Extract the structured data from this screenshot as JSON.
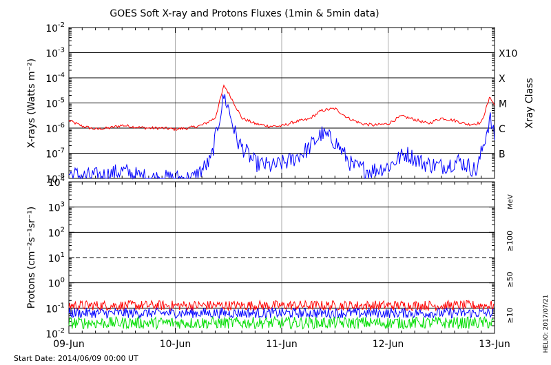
{
  "title": "GOES Soft X-ray and Protons Fluxes   (1min & 5min data)",
  "footer": {
    "start_date": "Start Date: 2014/06/09 00:00 UT",
    "credit": "HELIO: 2017/07/21"
  },
  "colors": {
    "xray_long": "#ff0000",
    "xray_short": "#0000ff",
    "proton_10": "#ff0000",
    "proton_50": "#0000ff",
    "proton_100": "#00dd00",
    "day_grid": "#aaaaaa"
  },
  "chart_data": [
    {
      "type": "line",
      "ylabel": "X-rays (Watts m⁻²)",
      "right_label": "Xray Class",
      "y_scale": "log",
      "ylim": [
        1e-08,
        0.01
      ],
      "y_ticks": [
        {
          "value": 1e-08,
          "base": "10",
          "exp": "-8"
        },
        {
          "value": 1e-07,
          "base": "10",
          "exp": "-7"
        },
        {
          "value": 1e-06,
          "base": "10",
          "exp": "-6"
        },
        {
          "value": 1e-05,
          "base": "10",
          "exp": "-5"
        },
        {
          "value": 0.0001,
          "base": "10",
          "exp": "-4"
        },
        {
          "value": 0.001,
          "base": "10",
          "exp": "-3"
        },
        {
          "value": 0.01,
          "base": "10",
          "exp": "-2"
        }
      ],
      "grid_lines": [
        1e-07,
        1e-06,
        1e-05,
        0.0001,
        0.001
      ],
      "class_labels": [
        {
          "label": "B",
          "value": 1e-07
        },
        {
          "label": "C",
          "value": 1e-06
        },
        {
          "label": "M",
          "value": 1e-05
        },
        {
          "label": "X",
          "value": 0.0001
        },
        {
          "label": "X10",
          "value": 0.001
        }
      ],
      "xlim": [
        "2014-06-09",
        "2014-06-13"
      ],
      "series": [
        {
          "color_key": "xray_long",
          "x": [
            "2014-06-09 00:00",
            "2014-06-09 03:00",
            "2014-06-09 06:00",
            "2014-06-09 09:00",
            "2014-06-09 12:00",
            "2014-06-09 15:00",
            "2014-06-09 18:00",
            "2014-06-09 21:00",
            "2014-06-10 00:00",
            "2014-06-10 03:00",
            "2014-06-10 06:00",
            "2014-06-10 09:00",
            "2014-06-10 11:00",
            "2014-06-10 12:00",
            "2014-06-10 13:00",
            "2014-06-10 15:00",
            "2014-06-10 18:00",
            "2014-06-10 21:00",
            "2014-06-11 00:00",
            "2014-06-11 03:00",
            "2014-06-11 06:00",
            "2014-06-11 09:00",
            "2014-06-11 12:00",
            "2014-06-11 15:00",
            "2014-06-11 18:00",
            "2014-06-11 21:00",
            "2014-06-12 00:00",
            "2014-06-12 03:00",
            "2014-06-12 06:00",
            "2014-06-12 09:00",
            "2014-06-12 12:00",
            "2014-06-12 15:00",
            "2014-06-12 18:00",
            "2014-06-12 21:00",
            "2014-06-12 23:00",
            "2014-06-13 00:00"
          ],
          "y": [
            2e-06,
            1.2e-06,
            9e-07,
            1e-06,
            1.3e-06,
            1.1e-06,
            1e-06,
            1e-06,
            9e-07,
            1e-06,
            1.3e-06,
            2.5e-06,
            5e-05,
            2.5e-05,
            1.2e-05,
            2.5e-06,
            1.5e-06,
            1.2e-06,
            1.2e-06,
            1.8e-06,
            2.2e-06,
            5e-06,
            6e-06,
            2.5e-06,
            1.5e-06,
            1.3e-06,
            1.5e-06,
            3e-06,
            2.2e-06,
            1.5e-06,
            2.5e-06,
            2e-06,
            1.4e-06,
            1.6e-06,
            1.8e-05,
            8e-06
          ]
        },
        {
          "color_key": "xray_short",
          "x": [
            "2014-06-09 00:00",
            "2014-06-09 04:00",
            "2014-06-09 08:00",
            "2014-06-09 12:00",
            "2014-06-09 16:00",
            "2014-06-09 20:00",
            "2014-06-10 00:00",
            "2014-06-10 04:00",
            "2014-06-10 08:00",
            "2014-06-10 11:00",
            "2014-06-10 12:00",
            "2014-06-10 14:00",
            "2014-06-10 18:00",
            "2014-06-10 22:00",
            "2014-06-11 02:00",
            "2014-06-11 06:00",
            "2014-06-11 09:00",
            "2014-06-11 12:00",
            "2014-06-11 16:00",
            "2014-06-11 20:00",
            "2014-06-12 00:00",
            "2014-06-12 04:00",
            "2014-06-12 08:00",
            "2014-06-12 12:00",
            "2014-06-12 16:00",
            "2014-06-12 20:00",
            "2014-06-12 23:00",
            "2014-06-13 00:00"
          ],
          "y": [
            1.5e-08,
            1.2e-08,
            1.3e-08,
            2e-08,
            1.2e-08,
            1e-08,
            1e-08,
            1e-08,
            5e-08,
            2e-05,
            6e-06,
            3e-07,
            4e-08,
            3e-08,
            5e-08,
            1.5e-07,
            6e-07,
            3e-07,
            3e-08,
            2e-08,
            3e-08,
            1e-07,
            4e-08,
            3e-08,
            5e-08,
            2e-08,
            2.5e-06,
            4e-07
          ]
        }
      ]
    },
    {
      "type": "line",
      "ylabel": "Protons (cm⁻²s⁻¹sr⁻¹)",
      "units_label": "MeV",
      "legend": [
        {
          "name": "≥10",
          "color_key": "proton_10"
        },
        {
          "name": "≥50",
          "color_key": "proton_50"
        },
        {
          "name": "≥100",
          "color_key": "proton_100"
        }
      ],
      "y_scale": "log",
      "ylim": [
        0.01,
        10000
      ],
      "y_ticks": [
        {
          "value": 0.01,
          "base": "10",
          "exp": "-2"
        },
        {
          "value": 0.1,
          "base": "10",
          "exp": "-1"
        },
        {
          "value": 1,
          "base": "10",
          "exp": "0"
        },
        {
          "value": 10,
          "base": "10",
          "exp": "1"
        },
        {
          "value": 100,
          "base": "10",
          "exp": "2"
        },
        {
          "value": 1000,
          "base": "10",
          "exp": "3"
        },
        {
          "value": 10000,
          "base": "10",
          "exp": "4"
        }
      ],
      "grid_lines": [
        0.1,
        1,
        100,
        1000
      ],
      "dashed_lines": [
        10
      ],
      "xlim": [
        "2014-06-09",
        "2014-06-13"
      ],
      "x_tick_labels": [
        "09-Jun",
        "10-Jun",
        "11-Jun",
        "12-Jun",
        "13-Jun"
      ],
      "series": [
        {
          "color_key": "proton_10",
          "level_range": [
            0.08,
            0.2
          ]
        },
        {
          "color_key": "proton_50",
          "level_range": [
            0.04,
            0.1
          ]
        },
        {
          "color_key": "proton_100",
          "level_range": [
            0.015,
            0.045
          ]
        }
      ]
    }
  ]
}
